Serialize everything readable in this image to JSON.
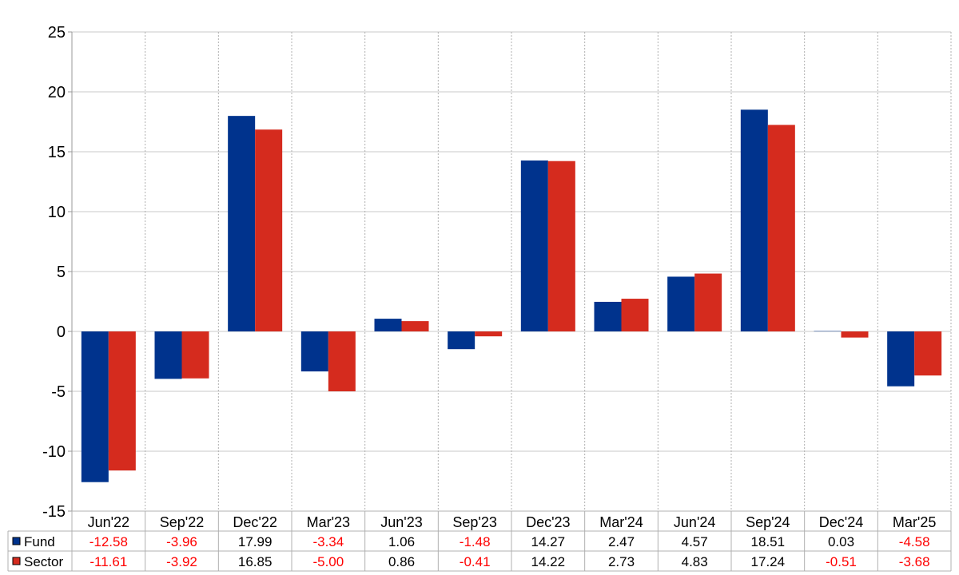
{
  "chart_data": {
    "type": "bar",
    "title": "",
    "xlabel": "",
    "ylabel": "",
    "ylim": [
      -15,
      25
    ],
    "yticks": [
      "25",
      "20",
      "15",
      "10",
      "5",
      "0",
      "-5",
      "-10",
      "-15"
    ],
    "grid": true,
    "legend_position": "data table rows below chart",
    "categories": [
      "Jun'22",
      "Sep'22",
      "Dec'22",
      "Mar'23",
      "Jun'23",
      "Sep'23",
      "Dec'23",
      "Mar'24",
      "Jun'24",
      "Sep'24",
      "Dec'24",
      "Mar'25"
    ],
    "series": [
      {
        "name": "Fund",
        "color": "#00338d",
        "values": [
          -12.58,
          -3.96,
          17.99,
          -3.34,
          1.06,
          -1.48,
          14.27,
          2.47,
          4.57,
          18.51,
          0.03,
          -4.58
        ],
        "labels": [
          "-12.58",
          "-3.96",
          "17.99",
          "-3.34",
          "1.06",
          "-1.48",
          "14.27",
          "2.47",
          "4.57",
          "18.51",
          "0.03",
          "-4.58"
        ]
      },
      {
        "name": "Sector",
        "color": "#d52b1e",
        "values": [
          -11.61,
          -3.92,
          16.85,
          -5.0,
          0.86,
          -0.41,
          14.22,
          2.73,
          4.83,
          17.24,
          -0.51,
          -3.68
        ],
        "labels": [
          "-11.61",
          "-3.92",
          "16.85",
          "-5.00",
          "0.86",
          "-0.41",
          "14.22",
          "2.73",
          "4.83",
          "17.24",
          "-0.51",
          "-3.68"
        ]
      }
    ],
    "negative_value_color": "#ff0000",
    "positive_value_color": "#000000"
  }
}
